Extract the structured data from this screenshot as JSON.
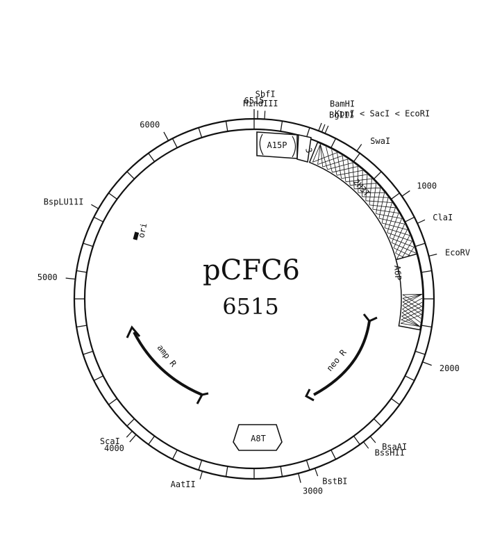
{
  "plasmid": {
    "name": "pCFC6",
    "size_label": "6515",
    "length_bp": 6515
  },
  "ruler_labels": [
    {
      "text": "6515",
      "bp": 0
    },
    {
      "text": "1000",
      "bp": 1000
    },
    {
      "text": "2000",
      "bp": 2000
    },
    {
      "text": "3000",
      "bp": 3000
    },
    {
      "text": "4000",
      "bp": 4000
    },
    {
      "text": "5000",
      "bp": 5000
    },
    {
      "text": "6000",
      "bp": 6000
    }
  ],
  "restriction_sites": [
    {
      "text": "HindIII",
      "bp": 20
    },
    {
      "text": "SbfI",
      "bp": 60
    },
    {
      "text": "BglII",
      "bp": 380
    },
    {
      "text": "BamHI",
      "bp": 400
    },
    {
      "text": "KpnI < SacI < EcoRI",
      "bp": 420
    },
    {
      "text": "SwaI",
      "bp": 630
    },
    {
      "text": "ClaI",
      "bp": 1180
    },
    {
      "text": "EcoRV",
      "bp": 1380
    },
    {
      "text": "BsaAI",
      "bp": 2530
    },
    {
      "text": "BssHII",
      "bp": 2580
    },
    {
      "text": "BstBI",
      "bp": 2900
    },
    {
      "text": "AatII",
      "bp": 3560
    },
    {
      "text": "ScaI",
      "bp": 4030
    },
    {
      "text": "BspLU11I",
      "bp": 5430
    }
  ],
  "features": {
    "a15p": "A15P",
    "small_box": "3",
    "h3t": "2H3T",
    "a6p": "A6P",
    "a8t": "A8T",
    "ori": "ori",
    "neo": "neo R",
    "amp": "amp R"
  }
}
